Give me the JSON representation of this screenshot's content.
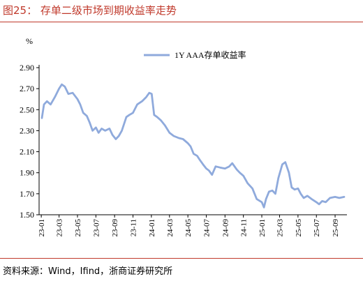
{
  "figure": {
    "title": "图25：  存单二级市场到期收益率走势",
    "source": "资料来源：Wind，Ifind，浙商证券研究所"
  },
  "chart_data": {
    "type": "line",
    "title": "",
    "xlabel": "",
    "ylabel": "%",
    "ylim": [
      1.5,
      2.9
    ],
    "y_ticks": [
      "1.50",
      "1.70",
      "1.90",
      "2.10",
      "2.30",
      "2.50",
      "2.70",
      "2.90"
    ],
    "x_ticks": [
      "23-01",
      "23-03",
      "23-05",
      "23-07",
      "23-09",
      "23-11",
      "24-01",
      "24-03",
      "24-05",
      "24-07",
      "24-09",
      "24-11",
      "25-01",
      "25-03",
      "25-05",
      "25-07",
      "25-09"
    ],
    "grid": false,
    "legend_position": "top-right",
    "series": [
      {
        "name": "1Y AAA存单收益率",
        "color": "#8faadc",
        "points": [
          [
            "2023-01-03",
            2.42
          ],
          [
            "2023-01-10",
            2.55
          ],
          [
            "2023-01-20",
            2.58
          ],
          [
            "2023-02-01",
            2.55
          ],
          [
            "2023-02-15",
            2.62
          ],
          [
            "2023-03-01",
            2.7
          ],
          [
            "2023-03-10",
            2.74
          ],
          [
            "2023-03-20",
            2.72
          ],
          [
            "2023-04-01",
            2.65
          ],
          [
            "2023-04-15",
            2.66
          ],
          [
            "2023-05-01",
            2.6
          ],
          [
            "2023-05-10",
            2.55
          ],
          [
            "2023-05-20",
            2.47
          ],
          [
            "2023-06-01",
            2.44
          ],
          [
            "2023-06-10",
            2.38
          ],
          [
            "2023-06-20",
            2.3
          ],
          [
            "2023-07-01",
            2.33
          ],
          [
            "2023-07-10",
            2.28
          ],
          [
            "2023-07-20",
            2.32
          ],
          [
            "2023-08-01",
            2.3
          ],
          [
            "2023-08-15",
            2.32
          ],
          [
            "2023-08-25",
            2.26
          ],
          [
            "2023-09-05",
            2.22
          ],
          [
            "2023-09-15",
            2.25
          ],
          [
            "2023-09-25",
            2.3
          ],
          [
            "2023-10-10",
            2.43
          ],
          [
            "2023-10-20",
            2.45
          ],
          [
            "2023-11-01",
            2.47
          ],
          [
            "2023-11-15",
            2.55
          ],
          [
            "2023-12-01",
            2.58
          ],
          [
            "2023-12-15",
            2.62
          ],
          [
            "2023-12-25",
            2.66
          ],
          [
            "2024-01-02",
            2.65
          ],
          [
            "2024-01-10",
            2.45
          ],
          [
            "2024-01-20",
            2.43
          ],
          [
            "2024-02-01",
            2.4
          ],
          [
            "2024-02-15",
            2.35
          ],
          [
            "2024-03-01",
            2.28
          ],
          [
            "2024-03-15",
            2.25
          ],
          [
            "2024-04-01",
            2.23
          ],
          [
            "2024-04-15",
            2.22
          ],
          [
            "2024-05-01",
            2.18
          ],
          [
            "2024-05-10",
            2.15
          ],
          [
            "2024-05-20",
            2.08
          ],
          [
            "2024-06-01",
            2.06
          ],
          [
            "2024-06-10",
            2.02
          ],
          [
            "2024-06-20",
            1.98
          ],
          [
            "2024-07-01",
            1.94
          ],
          [
            "2024-07-10",
            1.92
          ],
          [
            "2024-07-20",
            1.88
          ],
          [
            "2024-08-01",
            1.96
          ],
          [
            "2024-08-15",
            1.95
          ],
          [
            "2024-09-01",
            1.94
          ],
          [
            "2024-09-15",
            1.96
          ],
          [
            "2024-09-25",
            1.99
          ],
          [
            "2024-10-10",
            1.93
          ],
          [
            "2024-10-20",
            1.9
          ],
          [
            "2024-11-01",
            1.87
          ],
          [
            "2024-11-15",
            1.8
          ],
          [
            "2024-12-01",
            1.75
          ],
          [
            "2024-12-15",
            1.65
          ],
          [
            "2025-01-01",
            1.62
          ],
          [
            "2025-01-08",
            1.57
          ],
          [
            "2025-01-15",
            1.65
          ],
          [
            "2025-01-25",
            1.72
          ],
          [
            "2025-02-05",
            1.73
          ],
          [
            "2025-02-15",
            1.7
          ],
          [
            "2025-02-25",
            1.85
          ],
          [
            "2025-03-10",
            1.98
          ],
          [
            "2025-03-20",
            2.0
          ],
          [
            "2025-04-01",
            1.9
          ],
          [
            "2025-04-10",
            1.76
          ],
          [
            "2025-04-20",
            1.74
          ],
          [
            "2025-05-01",
            1.75
          ],
          [
            "2025-05-10",
            1.7
          ],
          [
            "2025-05-20",
            1.66
          ],
          [
            "2025-06-01",
            1.68
          ],
          [
            "2025-06-15",
            1.65
          ],
          [
            "2025-07-01",
            1.62
          ],
          [
            "2025-07-10",
            1.6
          ],
          [
            "2025-07-20",
            1.63
          ],
          [
            "2025-08-01",
            1.62
          ],
          [
            "2025-08-15",
            1.66
          ],
          [
            "2025-09-01",
            1.67
          ],
          [
            "2025-09-15",
            1.66
          ],
          [
            "2025-10-01",
            1.67
          ]
        ]
      }
    ]
  }
}
